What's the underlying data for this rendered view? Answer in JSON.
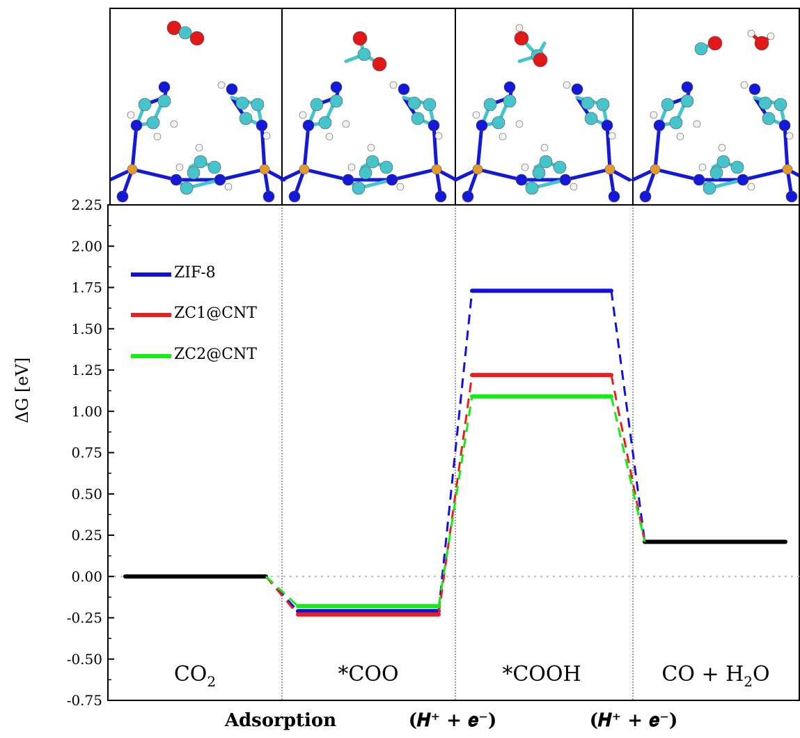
{
  "chart_data": {
    "type": "line",
    "ylabel": "ΔG [eV]",
    "ylim": [
      -0.75,
      2.25
    ],
    "yticks": [
      "-0.75",
      "-0.50",
      "-0.25",
      "0.00",
      "0.25",
      "0.50",
      "0.75",
      "1.00",
      "1.25",
      "1.50",
      "1.75",
      "2.00",
      "2.25"
    ],
    "ytick_values": [
      -0.75,
      -0.5,
      -0.25,
      0,
      0.25,
      0.5,
      0.75,
      1.0,
      1.25,
      1.5,
      1.75,
      2.0,
      2.25
    ],
    "categories": [
      "CO2",
      "*COO",
      "*COOH",
      "CO + H2O"
    ],
    "stage_labels": [
      {
        "main": "CO",
        "sub": "2",
        "rest": ""
      },
      {
        "main": "*COO",
        "sub": "",
        "rest": ""
      },
      {
        "main": "*COOH",
        "sub": "",
        "rest": ""
      },
      {
        "main": "CO + H",
        "sub": "2",
        "rest": "O"
      }
    ],
    "step_labels": [
      "Adsorption",
      "(𝑯⁺ + 𝒆⁻)",
      "(𝑯⁺ + 𝒆⁻)"
    ],
    "series": [
      {
        "name": "ZIF-8",
        "color": "#1010e0",
        "values": [
          0.0,
          -0.21,
          1.73,
          0.21
        ]
      },
      {
        "name": "ZC1@CNT",
        "color": "#ee1c1c",
        "values": [
          0.0,
          -0.23,
          1.22,
          0.21
        ]
      },
      {
        "name": "ZC2@CNT",
        "color": "#11ee11",
        "values": [
          0.0,
          -0.18,
          1.09,
          0.21
        ]
      }
    ],
    "shared_level_color": "#000000",
    "zero_line_color": "#bbbbbb",
    "legend_position": "top-left",
    "structure_panels": [
      "CO2",
      "*COO",
      "*COOH",
      "CO + H2O"
    ]
  }
}
